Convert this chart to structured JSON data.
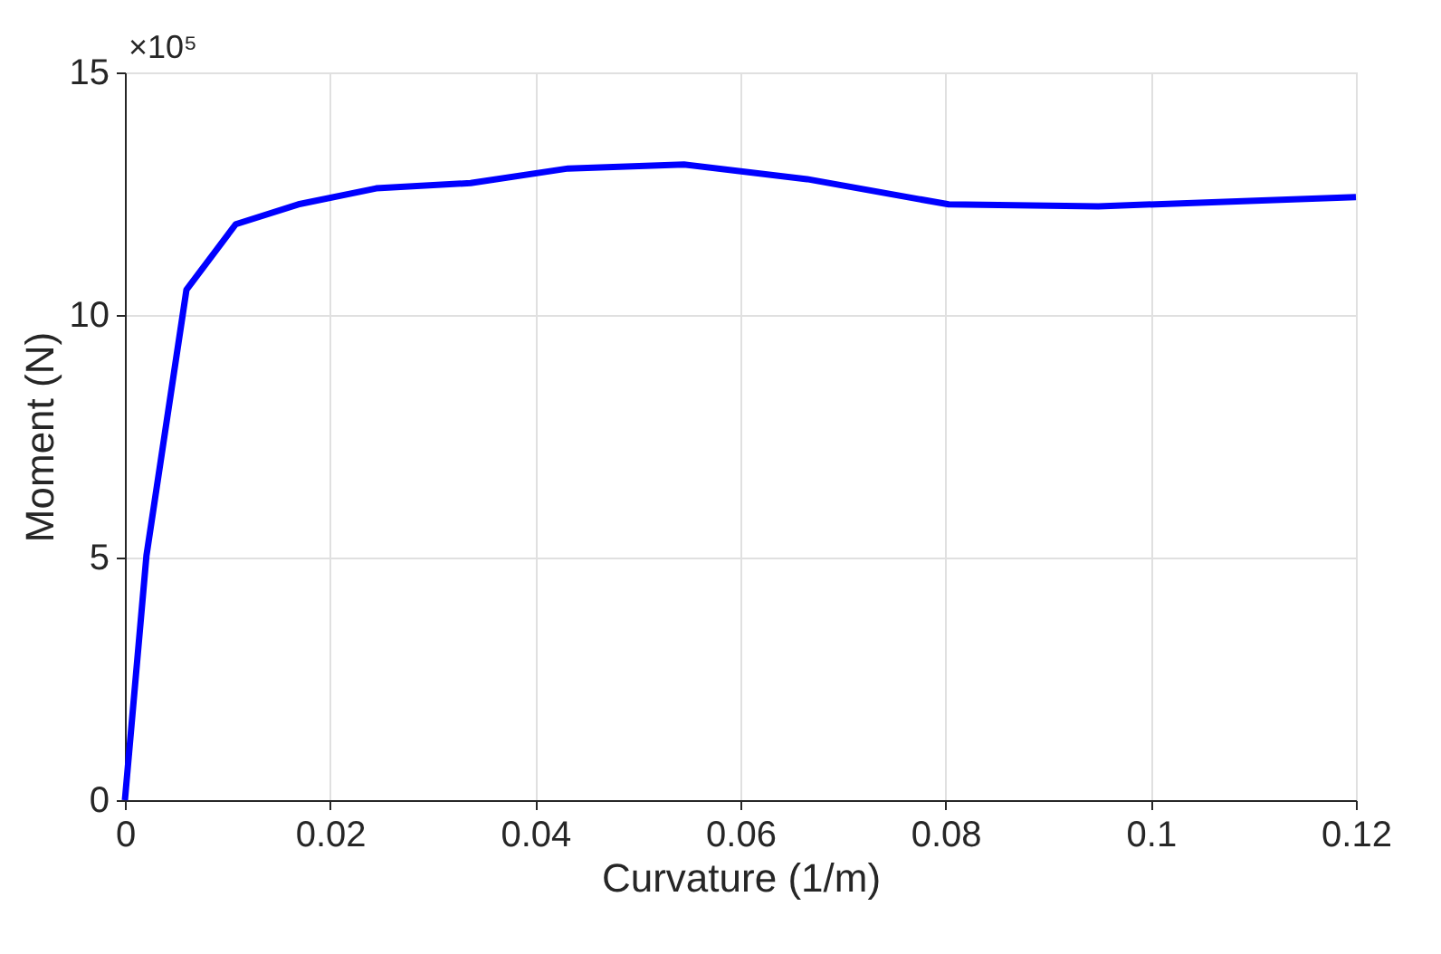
{
  "chart_data": {
    "type": "line",
    "xlabel": "Curvature (1/m)",
    "ylabel": "Moment (N)",
    "annotations": [
      "×10⁵"
    ],
    "x": [
      0,
      0.0021,
      0.006,
      0.0108,
      0.0169,
      0.0245,
      0.0337,
      0.0432,
      0.0545,
      0.0665,
      0.0803,
      0.0949,
      0.1096,
      0.12
    ],
    "series": [
      {
        "color": "#0000ff",
        "values": [
          0,
          5.04,
          10.52,
          11.87,
          12.28,
          12.61,
          12.72,
          13.02,
          13.1,
          12.8,
          12.28,
          12.24,
          12.35,
          12.43
        ]
      }
    ],
    "xlim": [
      0,
      0.12
    ],
    "xticks": [
      0,
      0.02,
      0.04,
      0.06,
      0.08,
      0.1,
      0.12
    ],
    "ylim": [
      0,
      15
    ],
    "yticks": [
      0,
      5,
      10,
      15
    ],
    "grid": true,
    "line_style": "solid",
    "marker": "none"
  }
}
